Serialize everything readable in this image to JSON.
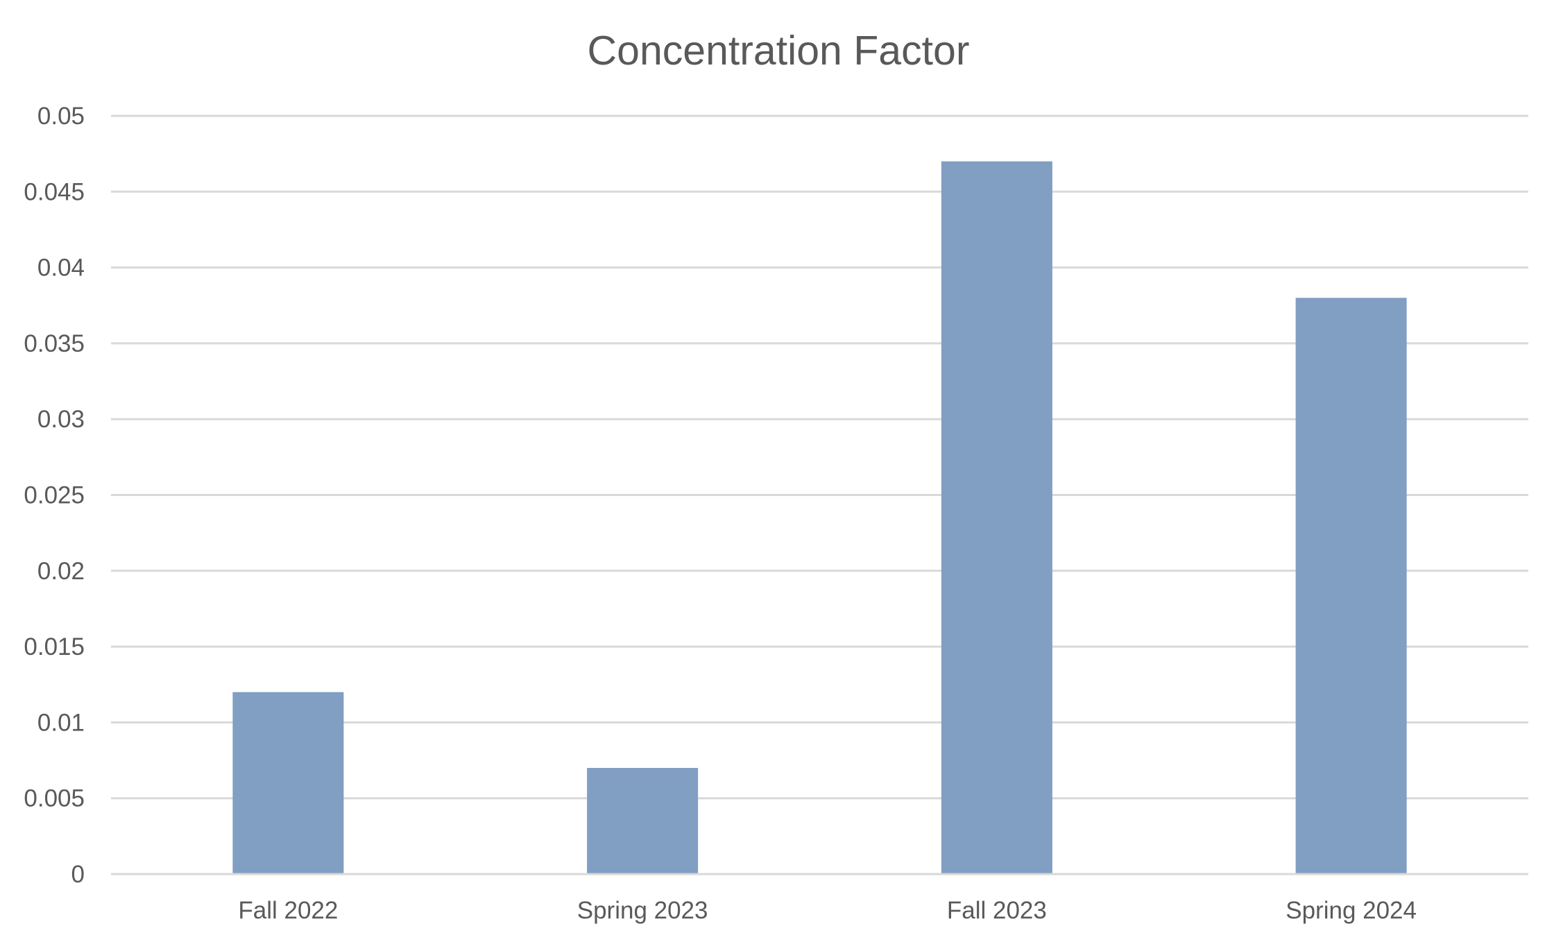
{
  "chart_data": {
    "type": "bar",
    "title": "Concentration Factor",
    "xlabel": "",
    "ylabel": "",
    "categories": [
      "Fall 2022",
      "Spring 2023",
      "Fall 2023",
      "Spring 2024"
    ],
    "series": [
      {
        "values": [
          0.012,
          0.007,
          0.047,
          0.038
        ],
        "color": "#819EC3"
      }
    ],
    "ylim": [
      0,
      0.05
    ],
    "yticks": [
      "0",
      "0.005",
      "0.01",
      "0.015",
      "0.02",
      "0.025",
      "0.03",
      "0.035",
      "0.04",
      "0.045",
      "0.05"
    ],
    "grid": true,
    "legend": "none"
  }
}
